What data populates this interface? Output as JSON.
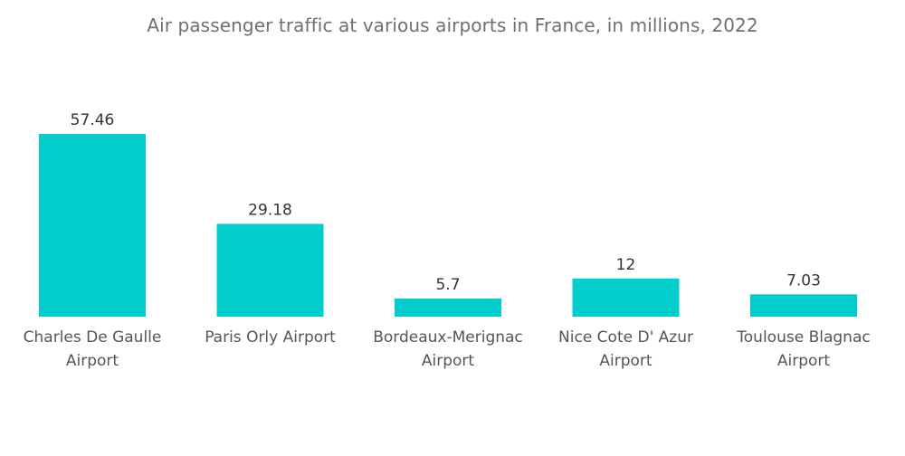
{
  "chart_data": {
    "type": "bar",
    "title": "Air passenger traffic at various airports in France, in millions, 2022",
    "categories": [
      [
        "Charles De Gaulle",
        "Airport"
      ],
      [
        "Paris Orly Airport"
      ],
      [
        "Bordeaux-Merignac",
        "Airport"
      ],
      [
        "Nice Cote D' Azur",
        "Airport"
      ],
      [
        "Toulouse Blagnac",
        "Airport"
      ]
    ],
    "values": [
      57.46,
      29.18,
      5.7,
      12,
      7.03
    ],
    "value_labels": [
      "57.46",
      "29.18",
      "5.7",
      "12",
      "7.03"
    ],
    "xlabel": "",
    "ylabel": "",
    "ylim": [
      0,
      57.46
    ],
    "grid": false,
    "bar_color": "#00CDCC"
  }
}
